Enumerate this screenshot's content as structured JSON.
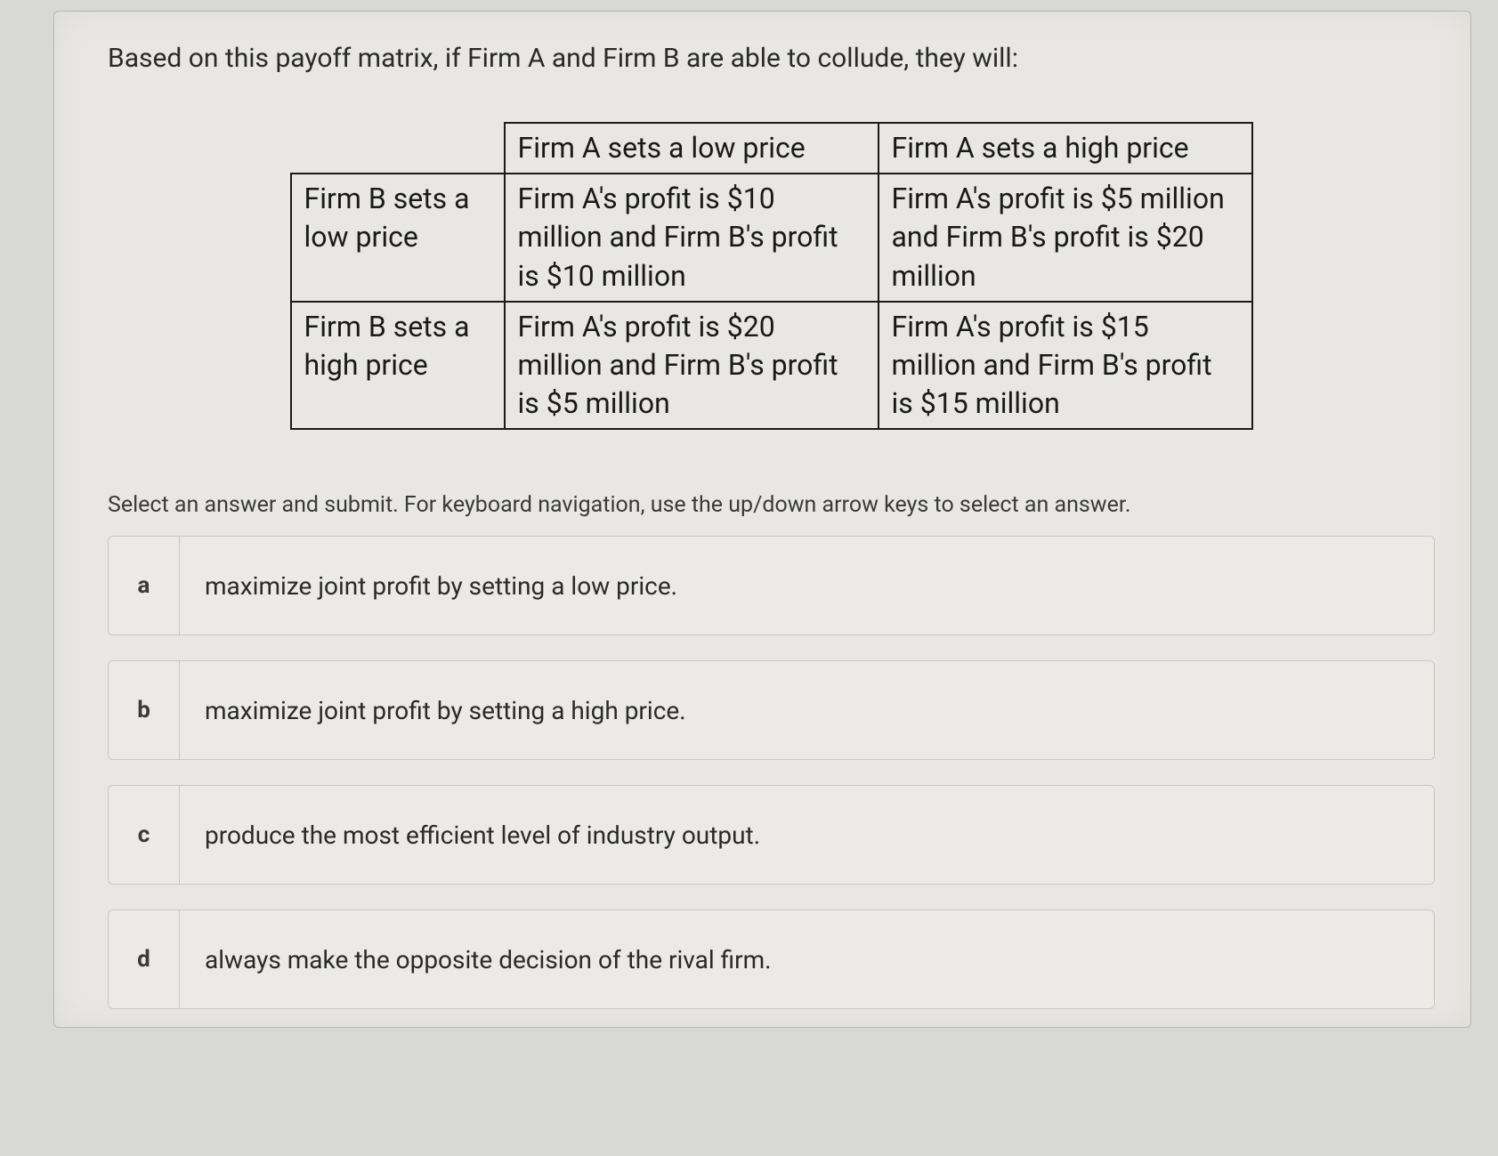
{
  "question": {
    "prompt": "Based on this payoff matrix, if Firm A and Firm B are able to collude, they will:"
  },
  "matrix": {
    "type": "table",
    "border_color": "#1a1a1a",
    "text_color": "#1a1a1a",
    "font_size_pt": 24,
    "col_headers": [
      "Firm A sets a low price",
      "Firm A sets a high price"
    ],
    "row_headers": [
      "Firm B sets a low price",
      "Firm B sets a high price"
    ],
    "cells": [
      [
        "Firm A's profit is $10 million and Firm B's profit is $10 million",
        "Firm A's profit is $5 million and Firm B's profit is $20 million"
      ],
      [
        "Firm A's profit is $20 million and Firm B's profit is $5 million",
        "Firm A's profit is $15 million and Firm B's profit is $15 million"
      ]
    ]
  },
  "instruction": "Select an answer and submit. For keyboard navigation, use the up/down arrow keys to select an answer.",
  "answers": [
    {
      "letter": "a",
      "text": "maximize joint profit by setting a low price."
    },
    {
      "letter": "b",
      "text": "maximize joint profit by setting a high price."
    },
    {
      "letter": "c",
      "text": "produce the most efficient level of industry output."
    },
    {
      "letter": "d",
      "text": "always make the opposite decision of the rival firm."
    }
  ],
  "styling": {
    "page_bg": "#d8d8d4",
    "card_bg": "#e8e7e3",
    "answer_bg": "#eceae6",
    "border_color": "#c8c8c2",
    "text_color": "#2a2a2a",
    "question_fontsize": 30,
    "instruction_fontsize": 25,
    "answer_fontsize": 28,
    "letter_fontsize": 26
  }
}
